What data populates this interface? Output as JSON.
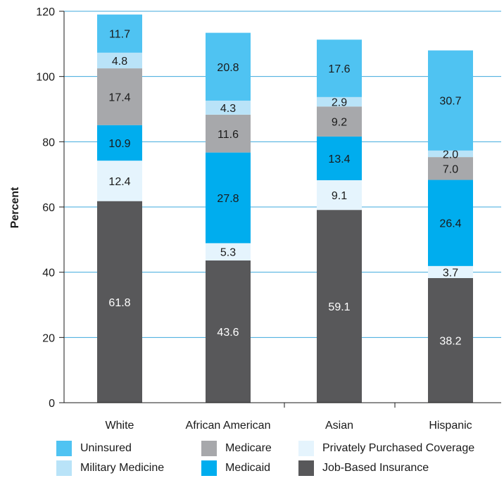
{
  "chart_data": {
    "type": "bar",
    "stacked": true,
    "ylabel": "Percent",
    "xlabel": "",
    "ylim": [
      0,
      120
    ],
    "yticks": [
      0,
      20,
      40,
      60,
      80,
      100,
      120
    ],
    "grid": true,
    "categories": [
      "White",
      "African American",
      "Asian",
      "Hispanic"
    ],
    "series": [
      {
        "name": "Job-Based Insurance",
        "color": "#58585a",
        "label_color": "#ffffff",
        "values": [
          61.8,
          43.6,
          59.1,
          38.2
        ]
      },
      {
        "name": "Privately Purchased Coverage",
        "color": "#e5f4fd",
        "label_color": "#1a1a1a",
        "values": [
          12.4,
          5.3,
          9.1,
          3.7
        ]
      },
      {
        "name": "Medicaid",
        "color": "#00adee",
        "label_color": "#1a1a1a",
        "values": [
          10.9,
          27.8,
          13.4,
          26.4
        ]
      },
      {
        "name": "Medicare",
        "color": "#a7a8ab",
        "label_color": "#1a1a1a",
        "values": [
          17.4,
          11.6,
          9.2,
          7.0
        ]
      },
      {
        "name": "Military Medicine",
        "color": "#b9e3f8",
        "label_color": "#1a1a1a",
        "values": [
          4.8,
          4.3,
          2.9,
          2.0
        ]
      },
      {
        "name": "Uninsured",
        "color": "#4fc3f2",
        "label_color": "#1a1a1a",
        "values": [
          11.7,
          20.8,
          17.6,
          30.7
        ]
      }
    ],
    "value_labels": [
      [
        "61.8",
        "12.4",
        "10.9",
        "17.4",
        "4.8",
        "11.7"
      ],
      [
        "43.6",
        "5.3",
        "27.8",
        "11.6",
        "4.3",
        "20.8"
      ],
      [
        "59.1",
        "9.1",
        "13.4",
        "9.2",
        "2.9",
        "17.6"
      ],
      [
        "38.2",
        "3.7",
        "26.4",
        "7.0",
        "2.0",
        "30.7"
      ]
    ],
    "legend": {
      "placement": "bottom",
      "rows": [
        [
          "Uninsured",
          "Medicare",
          "Privately Purchased Coverage"
        ],
        [
          "Military Medicine",
          "Medicaid",
          "Job-Based Insurance"
        ]
      ]
    }
  }
}
